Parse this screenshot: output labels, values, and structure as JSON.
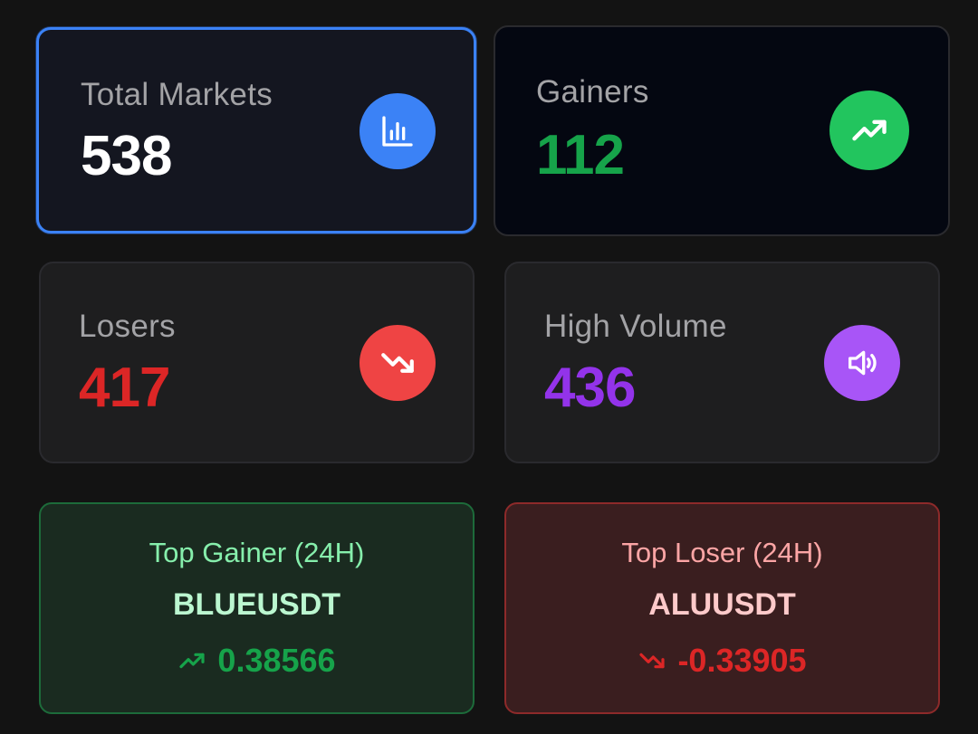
{
  "stats": {
    "total": {
      "label": "Total Markets",
      "value": "538",
      "icon": "bar-chart-icon",
      "value_color": "#ffffff",
      "icon_bg": "#3b82f6"
    },
    "gainers": {
      "label": "Gainers",
      "value": "112",
      "icon": "trending-up-icon",
      "value_color": "#16a34a",
      "icon_bg": "#22c55e"
    },
    "losers": {
      "label": "Losers",
      "value": "417",
      "icon": "trending-down-icon",
      "value_color": "#dc2626",
      "icon_bg": "#ef4444"
    },
    "volume": {
      "label": "High Volume",
      "value": "436",
      "icon": "volume-icon",
      "value_color": "#9333ea",
      "icon_bg": "#a855f7"
    }
  },
  "top_gainer": {
    "title": "Top Gainer (24H)",
    "symbol": "BLUEUSDT",
    "change": "0.38566",
    "icon": "trending-up-icon",
    "color": "#16a34a"
  },
  "top_loser": {
    "title": "Top Loser (24H)",
    "symbol": "ALUUSDT",
    "change": "-0.33905",
    "icon": "trending-down-icon",
    "color": "#dc2626"
  }
}
